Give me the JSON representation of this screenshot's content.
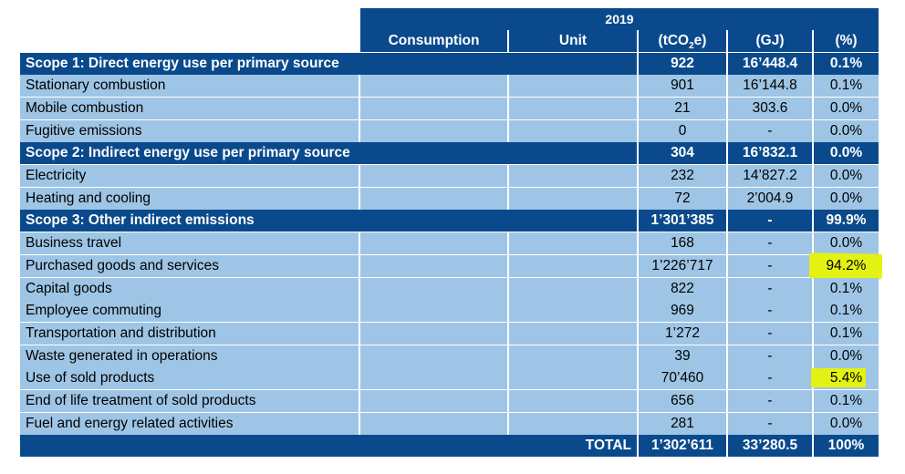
{
  "header": {
    "year": "2019",
    "columns": [
      "Consumption",
      "Unit",
      "(tCO₂e)",
      "(GJ)",
      "(%)"
    ]
  },
  "rows": [
    {
      "kind": "section",
      "label": "Scope 1: Direct energy use per primary source",
      "t": "922",
      "gj": "16’448.4",
      "pct": "0.1%"
    },
    {
      "kind": "item",
      "label": "Stationary combustion",
      "t": "901",
      "gj": "16’144.8",
      "pct": "0.1%"
    },
    {
      "kind": "item",
      "label": "Mobile combustion",
      "t": "21",
      "gj": "303.6",
      "pct": "0.0%"
    },
    {
      "kind": "item",
      "label": "Fugitive emissions",
      "t": "0",
      "gj": "-",
      "pct": "0.0%"
    },
    {
      "kind": "section",
      "label": "Scope 2: Indirect energy use per primary source",
      "t": "304",
      "gj": "16’832.1",
      "pct": "0.0%"
    },
    {
      "kind": "item",
      "label": "Electricity",
      "t": "232",
      "gj": "14’827.2",
      "pct": "0.0%"
    },
    {
      "kind": "item",
      "label": "Heating and cooling",
      "t": "72",
      "gj": "2’004.9",
      "pct": "0.0%"
    },
    {
      "kind": "section",
      "label": "Scope 3: Other indirect emissions",
      "t": "1’301’385",
      "gj": "-",
      "pct": "99.9%"
    },
    {
      "kind": "item",
      "label": "Business travel",
      "t": "168",
      "gj": "-",
      "pct": "0.0%"
    },
    {
      "kind": "item",
      "label": "Purchased goods and services",
      "t": "1’226’717",
      "gj": "-",
      "pct": "94.2%",
      "highlight": true
    },
    {
      "kind": "item",
      "label": "Capital goods",
      "t": "822",
      "gj": "-",
      "pct": "0.1%"
    },
    {
      "kind": "item",
      "label": "Employee commuting",
      "t": "969",
      "gj": "-",
      "pct": "0.1%"
    },
    {
      "kind": "item",
      "label": "Transportation and distribution",
      "t": "1’272",
      "gj": "-",
      "pct": "0.1%"
    },
    {
      "kind": "item",
      "label": "Waste generated in operations",
      "t": "39",
      "gj": "-",
      "pct": "0.0%"
    },
    {
      "kind": "item",
      "label": "Use of sold products",
      "t": "70’460",
      "gj": "-",
      "pct": "5.4%",
      "highlight": true
    },
    {
      "kind": "item",
      "label": "End of life treatment of sold products",
      "t": "656",
      "gj": "-",
      "pct": "0.1%"
    },
    {
      "kind": "item",
      "label": "Fuel and energy related activities",
      "t": "281",
      "gj": "-",
      "pct": "0.0%"
    }
  ],
  "total": {
    "label": "TOTAL",
    "t": "1’302’611",
    "gj": "33’280.5",
    "pct": "100%"
  },
  "colors": {
    "dark": "#0a4a8c",
    "light": "#9ec5e5",
    "highlight": "#e3f212"
  }
}
